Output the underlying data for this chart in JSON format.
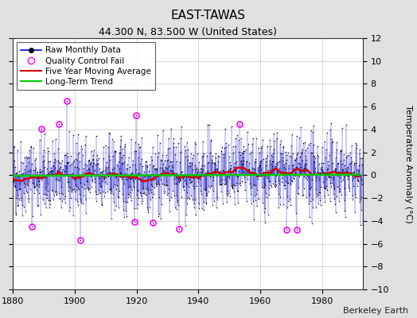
{
  "title": "EAST-TAWAS",
  "subtitle": "44.300 N, 83.500 W (United States)",
  "ylabel": "Temperature Anomaly (°C)",
  "credit": "Berkeley Earth",
  "xlim": [
    1880,
    1993
  ],
  "ylim": [
    -10,
    12
  ],
  "yticks": [
    -10,
    -8,
    -6,
    -4,
    -2,
    0,
    2,
    4,
    6,
    8,
    10,
    12
  ],
  "xticks": [
    1880,
    1900,
    1920,
    1940,
    1960,
    1980
  ],
  "background_color": "#e0e0e0",
  "plot_background": "#ffffff",
  "seed": 42,
  "start_year": 1880,
  "end_year": 1992,
  "months_per_year": 12,
  "raw_std": 1.9,
  "line_color": "#0000cc",
  "dot_color": "#000000",
  "qc_color": "#ff00ff",
  "ma_color": "#cc0000",
  "trend_color": "#00cc00",
  "title_fontsize": 11,
  "subtitle_fontsize": 9,
  "ylabel_fontsize": 8,
  "tick_fontsize": 8,
  "legend_fontsize": 7.5,
  "credit_fontsize": 8
}
